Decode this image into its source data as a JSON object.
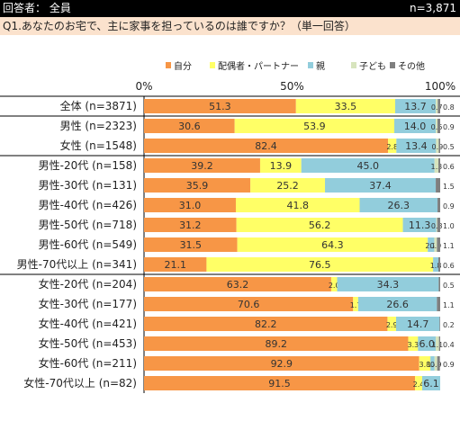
{
  "header": {
    "respondent_label": "回答者： 全員",
    "n_total": "n=3,871"
  },
  "question": "Q1.あなたのお宅で、主に家事を担っているのは誰ですか？（単一回答）",
  "colors": {
    "self": "#f79646",
    "spouse": "#ffff66",
    "parent": "#92cddc",
    "child": "#d7e4bd",
    "other": "#7f7f7f"
  },
  "chart_data": {
    "type": "bar",
    "orientation": "horizontal",
    "stacked": true,
    "percent": true,
    "xlim": [
      0,
      100
    ],
    "xticks": [
      "0%",
      "50%",
      "100%"
    ],
    "legend_position": "top-right",
    "series_names": [
      "自分",
      "配偶者・パートナー",
      "親",
      "子ども",
      "その他"
    ],
    "categories": [
      "全体 (n=3871)",
      "男性 (n=2323)",
      "女性 (n=1548)",
      "男性-20代 (n=158)",
      "男性-30代 (n=131)",
      "男性-40代 (n=426)",
      "男性-50代 (n=718)",
      "男性-60代 (n=549)",
      "男性-70代以上 (n=341)",
      "女性-20代 (n=204)",
      "女性-30代 (n=177)",
      "女性-40代 (n=421)",
      "女性-50代 (n=453)",
      "女性-60代 (n=211)",
      "女性-70代以上 (n=82)"
    ],
    "series": [
      {
        "name": "自分",
        "values": [
          51.3,
          30.6,
          82.4,
          39.2,
          35.9,
          31.0,
          31.2,
          31.5,
          21.1,
          63.2,
          70.6,
          82.2,
          89.2,
          92.9,
          91.5
        ]
      },
      {
        "name": "配偶者・パートナー",
        "values": [
          33.5,
          53.9,
          2.8,
          13.9,
          25.2,
          41.8,
          56.2,
          64.3,
          76.5,
          2.0,
          1.7,
          2.9,
          3.3,
          3.8,
          2.4
        ]
      },
      {
        "name": "親",
        "values": [
          13.7,
          14.0,
          13.4,
          45.0,
          37.4,
          26.3,
          11.3,
          2.2,
          1.8,
          34.3,
          26.6,
          14.7,
          6.0,
          1.4,
          6.1
        ]
      },
      {
        "name": "子ども",
        "values": [
          0.7,
          0.6,
          0.9,
          1.3,
          0.0,
          0.0,
          0.3,
          0.9,
          0.0,
          0.0,
          0.0,
          0.0,
          1.1,
          0.9,
          0.0
        ]
      },
      {
        "name": "その他",
        "values": [
          0.8,
          0.9,
          0.5,
          0.6,
          1.5,
          0.9,
          1.0,
          1.1,
          0.6,
          0.5,
          1.1,
          0.2,
          0.4,
          0.9,
          0.0
        ]
      }
    ],
    "data_labels": [
      [
        "51.3",
        "33.5",
        "13.7",
        "0.7",
        "0.8"
      ],
      [
        "30.6",
        "53.9",
        "14.0",
        "0.6",
        "0.9"
      ],
      [
        "82.4",
        "2.8",
        "13.4",
        "0.9",
        "0.5"
      ],
      [
        "39.2",
        "13.9",
        "45.0",
        "1.3",
        "0.6"
      ],
      [
        "35.9",
        "25.2",
        "37.4",
        "",
        "1.5"
      ],
      [
        "31.0",
        "41.8",
        "26.3",
        "",
        "0.9"
      ],
      [
        "31.2",
        "56.2",
        "11.3",
        "0.3",
        "1.0"
      ],
      [
        "31.5",
        "64.3",
        "2.2",
        "0.9",
        "1.1"
      ],
      [
        "21.1",
        "76.5",
        "1.8",
        "",
        "0.6"
      ],
      [
        "63.2",
        "2.0",
        "34.3",
        "",
        "0.5"
      ],
      [
        "70.6",
        "1.7",
        "26.6",
        "",
        "1.1"
      ],
      [
        "82.2",
        "2.9",
        "14.7",
        "",
        "0.2"
      ],
      [
        "89.2",
        "3.3",
        "6.0",
        "1.1",
        "0.4"
      ],
      [
        "92.9",
        "3.8",
        "1.4",
        "0.9",
        "0.9"
      ],
      [
        "91.5",
        "2.4",
        "6.1",
        "",
        ""
      ]
    ]
  }
}
